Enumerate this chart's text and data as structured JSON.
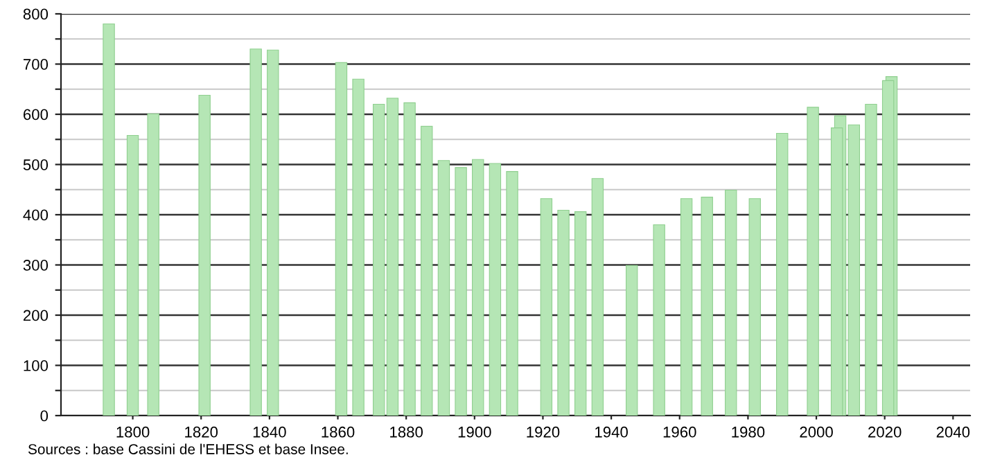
{
  "chart_data": {
    "type": "bar",
    "x": [
      1793,
      1800,
      1806,
      1821,
      1836,
      1841,
      1861,
      1866,
      1872,
      1876,
      1881,
      1886,
      1891,
      1896,
      1901,
      1906,
      1911,
      1921,
      1926,
      1931,
      1936,
      1946,
      1954,
      1962,
      1968,
      1975,
      1982,
      1990,
      1999,
      2006,
      2007,
      2011,
      2016,
      2021,
      2022
    ],
    "values": [
      780,
      558,
      601,
      638,
      730,
      728,
      703,
      670,
      620,
      632,
      623,
      576,
      508,
      494,
      510,
      502,
      486,
      432,
      409,
      406,
      472,
      299,
      380,
      432,
      435,
      449,
      432,
      562,
      614,
      573,
      597,
      579,
      620,
      667,
      675
    ],
    "color": "#b5e6b5",
    "xlim": [
      1779,
      2045
    ],
    "xticks": [
      1800,
      1820,
      1840,
      1860,
      1880,
      1900,
      1920,
      1940,
      1960,
      1980,
      2000,
      2020,
      2040
    ],
    "ylim": [
      0,
      800
    ],
    "yticks": [
      0,
      {
        "value": 50,
        "label": null
      },
      100,
      {
        "value": 150,
        "label": null
      },
      200,
      {
        "value": 250,
        "label": null
      },
      300,
      {
        "value": 350,
        "label": null
      },
      400,
      {
        "value": 450,
        "label": null
      },
      500,
      {
        "value": 550,
        "label": null
      },
      600,
      {
        "value": 650,
        "label": null
      },
      700,
      {
        "value": 750,
        "label": null
      },
      800
    ],
    "grid": "y",
    "annotations": [
      "Sources : base Cassini de l'EHESS et base Insee."
    ]
  }
}
